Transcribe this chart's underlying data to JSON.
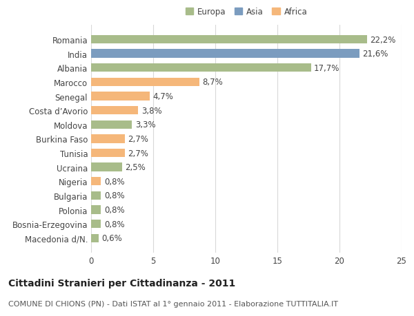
{
  "categories": [
    "Macedonia d/N.",
    "Bosnia-Erzegovina",
    "Polonia",
    "Bulgaria",
    "Nigeria",
    "Ucraina",
    "Tunisia",
    "Burkina Faso",
    "Moldova",
    "Costa d’Avorio",
    "Senegal",
    "Marocco",
    "Albania",
    "India",
    "Romania"
  ],
  "values": [
    0.6,
    0.8,
    0.8,
    0.8,
    0.8,
    2.5,
    2.7,
    2.7,
    3.3,
    3.8,
    4.7,
    8.7,
    17.7,
    21.6,
    22.2
  ],
  "bar_colors": [
    "#a8bc8a",
    "#a8bc8a",
    "#a8bc8a",
    "#a8bc8a",
    "#f5b77a",
    "#a8bc8a",
    "#f5b77a",
    "#f5b77a",
    "#a8bc8a",
    "#f5b77a",
    "#f5b77a",
    "#f5b77a",
    "#a8bc8a",
    "#7b9cbf",
    "#a8bc8a"
  ],
  "labels": [
    "0,6%",
    "0,8%",
    "0,8%",
    "0,8%",
    "0,8%",
    "2,5%",
    "2,7%",
    "2,7%",
    "3,3%",
    "3,8%",
    "4,7%",
    "8,7%",
    "17,7%",
    "21,6%",
    "22,2%"
  ],
  "legend_labels": [
    "Europa",
    "Asia",
    "Africa"
  ],
  "legend_colors": [
    "#a8bc8a",
    "#7b9cbf",
    "#f5b77a"
  ],
  "xlim": [
    0,
    25
  ],
  "xticks": [
    0,
    5,
    10,
    15,
    20,
    25
  ],
  "title_line1": "Cittadini Stranieri per Cittadinanza - 2011",
  "title_line2": "COMUNE DI CHIONS (PN) - Dati ISTAT al 1° gennaio 2011 - Elaborazione TUTTITALIA.IT",
  "background_color": "#ffffff",
  "grid_color": "#d8d8d8",
  "bar_height": 0.6,
  "label_fontsize": 8.5,
  "tick_fontsize": 8.5,
  "title1_fontsize": 10,
  "title2_fontsize": 8
}
